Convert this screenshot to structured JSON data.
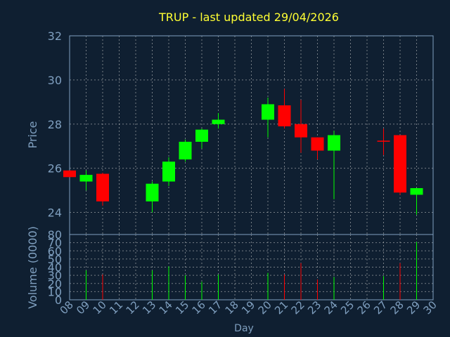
{
  "chart_data": {
    "type": "candlestick",
    "title": "TRUP - last updated 29/04/2026",
    "price_label": "Price",
    "volume_label": "Volume (0000)",
    "xlabel": "Day",
    "price_ylim": [
      23.0,
      32.0
    ],
    "price_ticks": [
      24,
      26,
      28,
      30,
      32
    ],
    "volume_ylim": [
      0,
      80
    ],
    "volume_ticks": [
      0,
      10,
      20,
      30,
      40,
      50,
      60,
      70,
      80
    ],
    "xlim": [
      "08",
      "30"
    ],
    "x_ticks": [
      "08",
      "09",
      "10",
      "11",
      "12",
      "13",
      "14",
      "15",
      "16",
      "17",
      "18",
      "19",
      "20",
      "21",
      "22",
      "23",
      "24",
      "25",
      "26",
      "27",
      "28",
      "29",
      "30"
    ],
    "grid": true,
    "colors": {
      "up": "#00ff00",
      "down": "#ff0000",
      "title": "#ffff33",
      "axis": "#7f9fbf",
      "background": "#0f1f31"
    },
    "candles": [
      {
        "day": "08",
        "open": 25.9,
        "high": 25.9,
        "low": 25.6,
        "close": 25.6,
        "volume": 0
      },
      {
        "day": "09",
        "open": 25.4,
        "high": 25.9,
        "low": 25.0,
        "close": 25.7,
        "volume": 36
      },
      {
        "day": "10",
        "open": 25.75,
        "high": 25.8,
        "low": 24.3,
        "close": 24.5,
        "volume": 31
      },
      {
        "day": "13",
        "open": 24.5,
        "high": 25.4,
        "low": 24.0,
        "close": 25.3,
        "volume": 36
      },
      {
        "day": "14",
        "open": 25.4,
        "high": 26.5,
        "low": 25.2,
        "close": 26.3,
        "volume": 41
      },
      {
        "day": "15",
        "open": 26.4,
        "high": 27.3,
        "low": 26.3,
        "close": 27.2,
        "volume": 30
      },
      {
        "day": "16",
        "open": 27.2,
        "high": 27.8,
        "low": 26.9,
        "close": 27.75,
        "volume": 22
      },
      {
        "day": "17",
        "open": 28.0,
        "high": 28.5,
        "low": 27.8,
        "close": 28.2,
        "volume": 31
      },
      {
        "day": "20",
        "open": 28.2,
        "high": 29.2,
        "low": 27.4,
        "close": 28.9,
        "volume": 33
      },
      {
        "day": "21",
        "open": 28.85,
        "high": 29.6,
        "low": 27.8,
        "close": 27.9,
        "volume": 31
      },
      {
        "day": "22",
        "open": 28.0,
        "high": 29.1,
        "low": 26.7,
        "close": 27.4,
        "volume": 45
      },
      {
        "day": "23",
        "open": 27.4,
        "high": 27.4,
        "low": 26.4,
        "close": 26.8,
        "volume": 25
      },
      {
        "day": "24",
        "open": 26.8,
        "high": 27.7,
        "low": 24.6,
        "close": 27.5,
        "volume": 28
      },
      {
        "day": "27",
        "open": 27.25,
        "high": 27.8,
        "low": 26.6,
        "close": 27.25,
        "volume": 29
      },
      {
        "day": "28",
        "open": 27.5,
        "high": 27.5,
        "low": 24.8,
        "close": 24.9,
        "volume": 45
      },
      {
        "day": "29",
        "open": 24.8,
        "high": 25.1,
        "low": 23.9,
        "close": 25.1,
        "volume": 71
      }
    ]
  }
}
